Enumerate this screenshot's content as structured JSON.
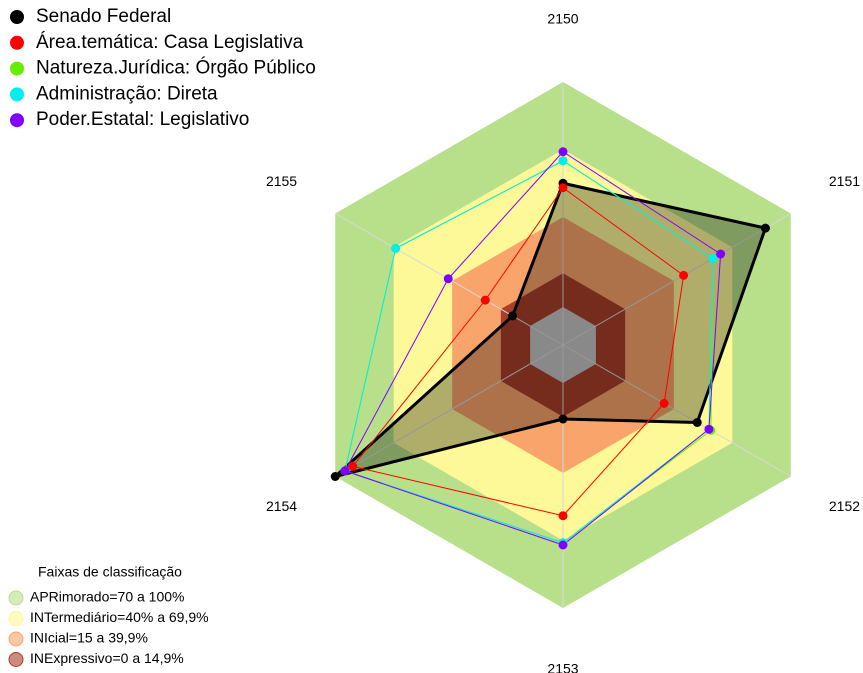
{
  "chart_data": {
    "type": "radar",
    "categories": [
      "2150",
      "2151",
      "2152",
      "2153",
      "2154",
      "2155"
    ],
    "rlim": [
      0,
      100
    ],
    "bands_title": "Faixas de classificação",
    "bands": [
      {
        "label": "APRimorado=70 a 100%",
        "from": 70,
        "to": 100,
        "color": "#b8df8a"
      },
      {
        "label": "INTermediário=40% a 69,9%",
        "from": 40,
        "to": 70,
        "color": "#fdf898"
      },
      {
        "label": "INIcial=15 a 39,9%",
        "from": 15,
        "to": 40,
        "color": "#f9a46a"
      },
      {
        "label": "INExpressivo=0 a 14,9%",
        "from": 0,
        "to": 15,
        "color": "#a83f2a"
      }
    ],
    "series": [
      {
        "name": "Senado Federal",
        "color": "#000000",
        "width": 3,
        "fill": true,
        "values": [
          55,
          87,
          52,
          16,
          100,
          9
        ]
      },
      {
        "name": "Área.temática: Casa Legislativa",
        "color": "#ff0000",
        "width": 1,
        "fill": false,
        "values": [
          53,
          45,
          35,
          59,
          91,
          23
        ]
      },
      {
        "name": "Natureza.Jurídica: Órgão Público",
        "color": "#66ee00",
        "width": 1,
        "fill": false,
        "values": [
          65,
          60,
          59,
          71,
          95,
          69
        ]
      },
      {
        "name": "Administração: Direta",
        "color": "#00eeee",
        "width": 1,
        "fill": false,
        "values": [
          65,
          60,
          58,
          71,
          95,
          69
        ]
      },
      {
        "name": "Poder.Estatal: Legislativo",
        "color": "#8000ff",
        "width": 1,
        "fill": false,
        "values": [
          69,
          64,
          58,
          72,
          95,
          42
        ]
      }
    ]
  }
}
